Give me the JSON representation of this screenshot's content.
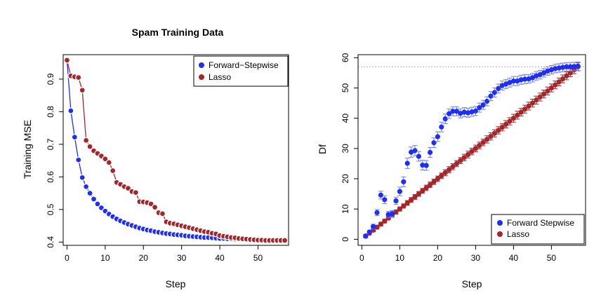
{
  "colors": {
    "forward": "#1f2ff0",
    "forward_error_bar": "#6f7df5",
    "lasso": "#a3262b",
    "refline": "#aaaaaa"
  },
  "chart_data": [
    {
      "type": "scatter",
      "title": "Spam Training Data",
      "xlabel": "Step",
      "ylabel": "Training MSE",
      "xlim": [
        -1,
        58
      ],
      "ylim": [
        0.39,
        0.975
      ],
      "xticks": [
        0,
        10,
        20,
        30,
        40,
        50
      ],
      "yticks": [
        0.4,
        0.5,
        0.6,
        0.7,
        0.8,
        0.9
      ],
      "ytick_labels": [
        "0.4",
        "0.5",
        "0.6",
        "0.7",
        "0.8",
        "0.9"
      ],
      "grid": false,
      "legend_position": "top-right",
      "series": [
        {
          "name": "Forward−Stepwise",
          "color_key": "forward",
          "connected": true,
          "x": [
            0,
            1,
            2,
            3,
            4,
            5,
            6,
            7,
            8,
            9,
            10,
            11,
            12,
            13,
            14,
            15,
            16,
            17,
            18,
            19,
            20,
            21,
            22,
            23,
            24,
            25,
            26,
            27,
            28,
            29,
            30,
            31,
            32,
            33,
            34,
            35,
            36,
            37,
            38,
            39,
            40,
            41,
            42,
            43,
            44,
            45,
            46,
            47,
            48,
            49,
            50,
            51,
            52,
            53,
            54,
            55,
            56,
            57
          ],
          "y": [
            0.958,
            0.803,
            0.722,
            0.652,
            0.598,
            0.57,
            0.55,
            0.532,
            0.517,
            0.505,
            0.495,
            0.486,
            0.478,
            0.471,
            0.465,
            0.46,
            0.455,
            0.451,
            0.447,
            0.443,
            0.44,
            0.437,
            0.435,
            0.432,
            0.43,
            0.428,
            0.426,
            0.425,
            0.423,
            0.422,
            0.421,
            0.419,
            0.418,
            0.417,
            0.416,
            0.415,
            0.414,
            0.414,
            0.413,
            0.412,
            0.411,
            0.411,
            0.41,
            0.41,
            0.409,
            0.409,
            0.408,
            0.408,
            0.407,
            0.407,
            0.407,
            0.406,
            0.406,
            0.406,
            0.405,
            0.405,
            0.405,
            0.405
          ]
        },
        {
          "name": "Lasso",
          "color_key": "lasso",
          "connected": true,
          "x": [
            0,
            1,
            2,
            3,
            4,
            5,
            6,
            7,
            8,
            9,
            10,
            11,
            12,
            13,
            14,
            15,
            16,
            17,
            18,
            19,
            20,
            21,
            22,
            23,
            24,
            25,
            26,
            27,
            28,
            29,
            30,
            31,
            32,
            33,
            34,
            35,
            36,
            37,
            38,
            39,
            40,
            41,
            42,
            43,
            44,
            45,
            46,
            47,
            48,
            49,
            50,
            51,
            52,
            53,
            54,
            55,
            56,
            57
          ],
          "y": [
            0.958,
            0.91,
            0.907,
            0.905,
            0.866,
            0.712,
            0.693,
            0.68,
            0.672,
            0.664,
            0.655,
            0.644,
            0.619,
            0.583,
            0.577,
            0.57,
            0.565,
            0.555,
            0.552,
            0.524,
            0.523,
            0.521,
            0.517,
            0.507,
            0.49,
            0.487,
            0.462,
            0.458,
            0.456,
            0.453,
            0.45,
            0.447,
            0.444,
            0.441,
            0.438,
            0.435,
            0.432,
            0.43,
            0.427,
            0.425,
            0.42,
            0.418,
            0.416,
            0.414,
            0.413,
            0.411,
            0.41,
            0.409,
            0.408,
            0.407,
            0.406,
            0.406,
            0.405,
            0.405,
            0.405,
            0.405,
            0.405,
            0.405
          ]
        }
      ]
    },
    {
      "type": "scatter",
      "title": "",
      "xlabel": "Step",
      "ylabel": "Df",
      "xlim": [
        -1,
        59
      ],
      "ylim": [
        -2,
        61
      ],
      "xticks": [
        0,
        10,
        20,
        30,
        40,
        50
      ],
      "yticks": [
        0,
        10,
        20,
        30,
        40,
        50,
        60
      ],
      "grid": false,
      "legend_position": "bottom-right",
      "reference_line_y": 57,
      "series": [
        {
          "name": "Forward Stepwise",
          "color_key": "forward",
          "error_color_key": "forward_error_bar",
          "connected": false,
          "x": [
            1,
            2,
            3,
            4,
            5,
            6,
            7,
            8,
            9,
            10,
            11,
            12,
            13,
            14,
            15,
            16,
            17,
            18,
            19,
            20,
            21,
            22,
            23,
            24,
            25,
            26,
            27,
            28,
            29,
            30,
            31,
            32,
            33,
            34,
            35,
            36,
            37,
            38,
            39,
            40,
            41,
            42,
            43,
            44,
            45,
            46,
            47,
            48,
            49,
            50,
            51,
            52,
            53,
            54,
            55,
            56,
            57
          ],
          "y": [
            1.1,
            2.4,
            4.2,
            8.8,
            14.6,
            13.1,
            8.2,
            8.5,
            12.7,
            15.8,
            19.0,
            25.1,
            28.8,
            29.3,
            27.4,
            24.5,
            24.4,
            28.7,
            31.9,
            33.9,
            37.1,
            39.8,
            41.5,
            42.3,
            42.3,
            41.6,
            42.0,
            41.8,
            42.1,
            42.4,
            43.5,
            44.4,
            45.6,
            47.3,
            48.5,
            49.8,
            50.8,
            51.3,
            51.8,
            52.3,
            52.3,
            52.7,
            52.9,
            53.0,
            53.4,
            54.0,
            54.4,
            55.0,
            55.6,
            56.0,
            56.4,
            56.6,
            56.8,
            57.0,
            57.0,
            57.1,
            57.2
          ],
          "error": [
            0.5,
            0.5,
            0.8,
            1.0,
            1.3,
            1.3,
            1.0,
            1.0,
            1.2,
            1.4,
            1.6,
            1.7,
            1.7,
            1.7,
            1.6,
            1.6,
            1.6,
            1.6,
            1.6,
            1.6,
            1.6,
            1.6,
            1.6,
            1.5,
            1.5,
            1.5,
            1.5,
            1.5,
            1.5,
            1.5,
            1.5,
            1.5,
            1.5,
            1.5,
            1.5,
            1.5,
            1.5,
            1.5,
            1.5,
            1.5,
            1.5,
            1.5,
            1.5,
            1.4,
            1.4,
            1.4,
            1.4,
            1.4,
            1.4,
            1.4,
            1.4,
            1.4,
            1.4,
            1.4,
            1.4,
            1.4,
            1.4
          ]
        },
        {
          "name": "Lasso",
          "color_key": "lasso",
          "connected": false,
          "x": [
            1,
            2,
            3,
            4,
            5,
            6,
            7,
            8,
            9,
            10,
            11,
            12,
            13,
            14,
            15,
            16,
            17,
            18,
            19,
            20,
            21,
            22,
            23,
            24,
            25,
            26,
            27,
            28,
            29,
            30,
            31,
            32,
            33,
            34,
            35,
            36,
            37,
            38,
            39,
            40,
            41,
            42,
            43,
            44,
            45,
            46,
            47,
            48,
            49,
            50,
            51,
            52,
            53,
            54,
            55,
            56,
            57
          ],
          "y": [
            1,
            2,
            3,
            4,
            5,
            6,
            7,
            8,
            9,
            10,
            11,
            12,
            13,
            14,
            15,
            16,
            17,
            18,
            19,
            20,
            21,
            22,
            23,
            24,
            25,
            26,
            27,
            28,
            29,
            30,
            31,
            32,
            33,
            34,
            35,
            36,
            37,
            38,
            39,
            40,
            41,
            42,
            43,
            44,
            45,
            46,
            47,
            48,
            49,
            50,
            51,
            52,
            53,
            54,
            55,
            56,
            57
          ],
          "error": [
            0.5,
            0.5,
            0.5,
            0.6,
            0.6,
            0.6,
            0.6,
            0.7,
            0.7,
            0.7,
            0.7,
            0.8,
            0.8,
            0.8,
            0.8,
            0.8,
            0.9,
            0.9,
            0.9,
            0.9,
            0.9,
            1.0,
            1.0,
            1.0,
            1.0,
            1.0,
            1.1,
            1.1,
            1.1,
            1.1,
            1.1,
            1.1,
            1.2,
            1.2,
            1.2,
            1.2,
            1.2,
            1.2,
            1.2,
            1.3,
            1.3,
            1.3,
            1.3,
            1.3,
            1.3,
            1.3,
            1.3,
            1.3,
            1.3,
            1.3,
            1.3,
            1.3,
            1.3,
            1.3,
            1.3,
            1.3,
            1.3
          ]
        }
      ]
    }
  ]
}
